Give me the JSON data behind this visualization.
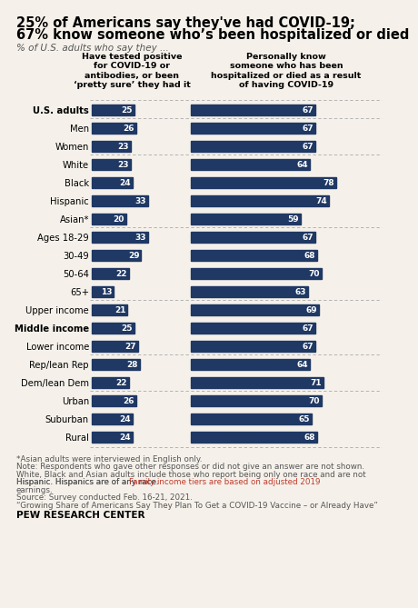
{
  "title_line1": "25% of Americans say they've had COVID-19;",
  "title_line2": "67% know someone who’s been hospitalized or died",
  "subtitle": "% of U.S. adults who say they ...",
  "col1_header": "Have tested positive\nfor COVID-19 or\nantibodies, or been\n‘pretty sure’ they had it",
  "col2_header": "Personally know\nsomeone who has been\nhospitalized or died as a result\nof having COVID-19",
  "categories": [
    "U.S. adults",
    "Men",
    "Women",
    "White",
    "Black",
    "Hispanic",
    "Asian*",
    "Ages 18-29",
    "30-49",
    "50-64",
    "65+",
    "Upper income",
    "Middle income",
    "Lower income",
    "Rep/lean Rep",
    "Dem/lean Dem",
    "Urban",
    "Suburban",
    "Rural"
  ],
  "col1_values": [
    25,
    26,
    23,
    23,
    24,
    33,
    20,
    33,
    29,
    22,
    13,
    21,
    25,
    27,
    28,
    22,
    26,
    24,
    24
  ],
  "col2_values": [
    67,
    67,
    67,
    64,
    78,
    74,
    59,
    67,
    68,
    70,
    63,
    69,
    67,
    67,
    64,
    71,
    70,
    65,
    68
  ],
  "bar_color": "#1F3864",
  "bold_categories": [
    "U.S. adults",
    "Middle income"
  ],
  "footnote_text": "*Asian adults were interviewed in English only.\nNote: Respondents who gave other responses or did not give an answer are not shown. White, Black and Asian adults include those who report being only one race and are not Hispanic. Hispanics are of any race. Family income tiers are based on adjusted 2019 earnings.\nSource: Survey conducted Feb. 16-21, 2021.\n“Growing Share of Americans Say They Plan To Get a COVID-19 Vaccine – or Already Have”",
  "pew_label": "PEW RESEARCH CENTER",
  "background_color": "#f5f1ea"
}
